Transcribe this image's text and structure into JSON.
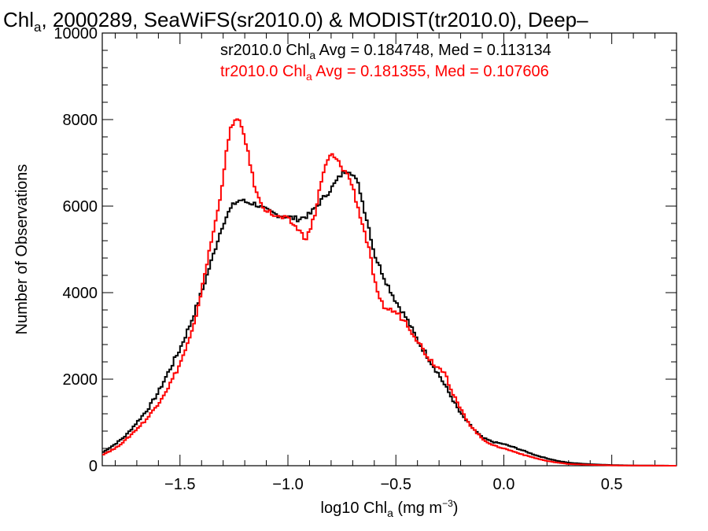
{
  "chart_data": {
    "type": "line",
    "title": {
      "prefix": "Chl",
      "sub": "a",
      "rest": ", 2000289, SeaWiFS(sr2010.0) & MODIST(tr2010.0), Deep–"
    },
    "xlabel": {
      "prefix": "log10 Chl",
      "sub": "a",
      "rest": " (mg m",
      "sup": "−3",
      "close": ")"
    },
    "ylabel": "Number of Observations",
    "xlim": [
      -1.86,
      0.8
    ],
    "ylim": [
      0,
      10000
    ],
    "x_ticks": [
      -1.5,
      -1.0,
      -0.5,
      0.0,
      0.5
    ],
    "x_tick_labels": [
      "−1.5",
      "−1.0",
      "−0.5",
      "0.0",
      "0.5"
    ],
    "y_ticks": [
      0,
      2000,
      4000,
      6000,
      8000,
      10000
    ],
    "y_tick_labels": [
      "0",
      "2000",
      "4000",
      "6000",
      "8000",
      "10000"
    ],
    "grid": false,
    "series": [
      {
        "name": "sr2010.0",
        "color": "#000000",
        "legend": {
          "prefix": "sr2010.0 Chl",
          "sub": "a",
          "rest": " Avg = 0.184748, Med = 0.113134"
        },
        "points": [
          [
            -1.86,
            300
          ],
          [
            -1.8,
            500
          ],
          [
            -1.75,
            700
          ],
          [
            -1.7,
            1000
          ],
          [
            -1.65,
            1300
          ],
          [
            -1.6,
            1700
          ],
          [
            -1.55,
            2200
          ],
          [
            -1.5,
            2700
          ],
          [
            -1.45,
            3300
          ],
          [
            -1.4,
            4000
          ],
          [
            -1.35,
            4800
          ],
          [
            -1.32,
            5300
          ],
          [
            -1.3,
            5600
          ],
          [
            -1.27,
            5900
          ],
          [
            -1.25,
            6050
          ],
          [
            -1.22,
            6150
          ],
          [
            -1.2,
            6100
          ],
          [
            -1.15,
            6050
          ],
          [
            -1.1,
            5900
          ],
          [
            -1.05,
            5800
          ],
          [
            -1.0,
            5750
          ],
          [
            -0.95,
            5700
          ],
          [
            -0.9,
            5800
          ],
          [
            -0.85,
            6100
          ],
          [
            -0.8,
            6400
          ],
          [
            -0.75,
            6750
          ],
          [
            -0.72,
            6850
          ],
          [
            -0.7,
            6750
          ],
          [
            -0.67,
            6450
          ],
          [
            -0.65,
            6000
          ],
          [
            -0.62,
            5400
          ],
          [
            -0.6,
            4900
          ],
          [
            -0.55,
            4300
          ],
          [
            -0.5,
            3800
          ],
          [
            -0.45,
            3400
          ],
          [
            -0.4,
            2900
          ],
          [
            -0.35,
            2500
          ],
          [
            -0.3,
            2100
          ],
          [
            -0.25,
            1650
          ],
          [
            -0.2,
            1200
          ],
          [
            -0.15,
            900
          ],
          [
            -0.1,
            650
          ],
          [
            -0.05,
            550
          ],
          [
            0.0,
            500
          ],
          [
            0.05,
            420
          ],
          [
            0.1,
            330
          ],
          [
            0.15,
            240
          ],
          [
            0.2,
            170
          ],
          [
            0.25,
            110
          ],
          [
            0.3,
            70
          ],
          [
            0.4,
            35
          ],
          [
            0.5,
            15
          ],
          [
            0.6,
            5
          ],
          [
            0.8,
            0
          ]
        ]
      },
      {
        "name": "tr2010.0",
        "color": "#ff0000",
        "legend": {
          "prefix": "tr2010.0 Chl",
          "sub": "a",
          "rest": " Avg = 0.181355, Med = 0.107606"
        },
        "points": [
          [
            -1.86,
            250
          ],
          [
            -1.8,
            400
          ],
          [
            -1.75,
            600
          ],
          [
            -1.7,
            850
          ],
          [
            -1.65,
            1100
          ],
          [
            -1.6,
            1450
          ],
          [
            -1.55,
            1850
          ],
          [
            -1.5,
            2350
          ],
          [
            -1.45,
            3000
          ],
          [
            -1.42,
            3500
          ],
          [
            -1.4,
            4100
          ],
          [
            -1.37,
            4800
          ],
          [
            -1.35,
            5300
          ],
          [
            -1.32,
            6000
          ],
          [
            -1.3,
            6700
          ],
          [
            -1.28,
            7400
          ],
          [
            -1.26,
            7900
          ],
          [
            -1.24,
            8000
          ],
          [
            -1.22,
            7900
          ],
          [
            -1.2,
            7600
          ],
          [
            -1.18,
            7100
          ],
          [
            -1.16,
            6600
          ],
          [
            -1.14,
            6200
          ],
          [
            -1.1,
            5900
          ],
          [
            -1.05,
            5750
          ],
          [
            -1.0,
            5700
          ],
          [
            -0.95,
            5450
          ],
          [
            -0.92,
            5250
          ],
          [
            -0.9,
            5400
          ],
          [
            -0.87,
            5900
          ],
          [
            -0.85,
            6500
          ],
          [
            -0.82,
            7000
          ],
          [
            -0.8,
            7200
          ],
          [
            -0.78,
            7100
          ],
          [
            -0.75,
            6900
          ],
          [
            -0.72,
            6700
          ],
          [
            -0.7,
            6450
          ],
          [
            -0.68,
            6050
          ],
          [
            -0.65,
            5500
          ],
          [
            -0.62,
            4900
          ],
          [
            -0.6,
            4300
          ],
          [
            -0.58,
            3850
          ],
          [
            -0.55,
            3650
          ],
          [
            -0.5,
            3550
          ],
          [
            -0.45,
            3300
          ],
          [
            -0.4,
            2900
          ],
          [
            -0.35,
            2500
          ],
          [
            -0.3,
            2250
          ],
          [
            -0.27,
            2200
          ],
          [
            -0.25,
            1800
          ],
          [
            -0.2,
            1300
          ],
          [
            -0.15,
            900
          ],
          [
            -0.1,
            620
          ],
          [
            -0.05,
            470
          ],
          [
            0.0,
            400
          ],
          [
            0.05,
            320
          ],
          [
            0.1,
            240
          ],
          [
            0.15,
            170
          ],
          [
            0.2,
            110
          ],
          [
            0.25,
            70
          ],
          [
            0.3,
            40
          ],
          [
            0.4,
            20
          ],
          [
            0.5,
            8
          ],
          [
            0.6,
            3
          ],
          [
            0.8,
            0
          ]
        ]
      }
    ]
  }
}
